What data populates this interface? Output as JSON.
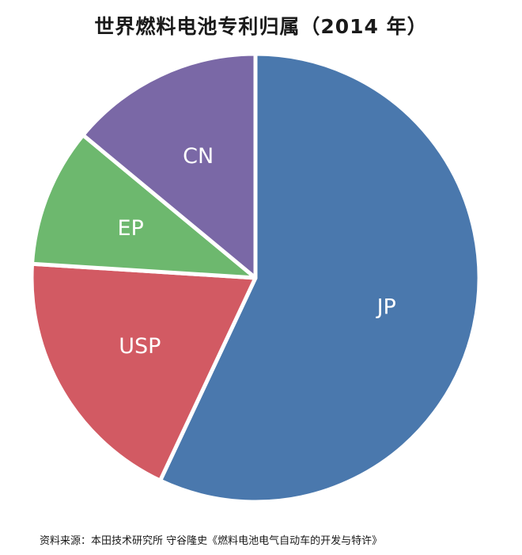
{
  "title": "世界燃料电池专利归属（2014 年）",
  "source": "资料来源：本田技术研究所  守谷隆史《燃料电池电气自动车的开发与特许》",
  "chart_data": {
    "type": "pie",
    "title": "世界燃料电池专利归属（2014 年）",
    "start": "12 o'clock, clockwise",
    "slices": [
      {
        "label": "JP",
        "value": 57,
        "color": "#4a78ad"
      },
      {
        "label": "USP",
        "value": 19,
        "color": "#d25a63"
      },
      {
        "label": "EP",
        "value": 10,
        "color": "#6db86e"
      },
      {
        "label": "CN",
        "value": 14,
        "color": "#7a68a6"
      }
    ]
  }
}
